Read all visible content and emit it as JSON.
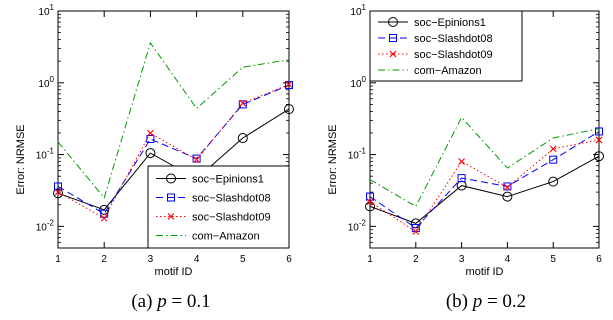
{
  "chart_data": [
    {
      "type": "line",
      "caption_prefix": "(a) ",
      "caption_var": "p",
      "caption_suffix": " = 0.1",
      "xlabel": "motif ID",
      "ylabel": "Error: NRMSE",
      "yscale": "log",
      "xlim": [
        1,
        6
      ],
      "ylim": [
        0.005,
        10
      ],
      "xticks": [
        "1",
        "2",
        "3",
        "4",
        "5",
        "6"
      ],
      "yticks": [
        {
          "value": 0.01,
          "base": "10",
          "exp": "-2"
        },
        {
          "value": 0.1,
          "base": "10",
          "exp": "-1"
        },
        {
          "value": 1,
          "base": "10",
          "exp": "0"
        },
        {
          "value": 10,
          "base": "10",
          "exp": "1"
        }
      ],
      "legend_position": "lower-right",
      "x": [
        1,
        2,
        3,
        4,
        5,
        6
      ],
      "series": [
        {
          "name": "soc−Epinions1",
          "color": "#000000",
          "dash": "",
          "marker": "circle",
          "values": [
            0.029,
            0.017,
            0.105,
            0.046,
            0.17,
            0.43
          ]
        },
        {
          "name": "soc−Slashdot08",
          "color": "#0000ff",
          "dash": "7,4",
          "marker": "square",
          "values": [
            0.036,
            0.015,
            0.165,
            0.088,
            0.5,
            0.93
          ]
        },
        {
          "name": "soc−Slashdot09",
          "color": "#ff0000",
          "dash": "1.5,2.5",
          "marker": "x",
          "values": [
            0.03,
            0.013,
            0.2,
            0.085,
            0.52,
            0.95
          ]
        },
        {
          "name": "com−Amazon",
          "color": "#009900",
          "dash": "7,3,1.5,3",
          "marker": "none",
          "values": [
            0.15,
            0.025,
            3.6,
            0.44,
            1.65,
            2.1
          ]
        }
      ]
    },
    {
      "type": "line",
      "caption_prefix": "(b) ",
      "caption_var": "p",
      "caption_suffix": " = 0.2",
      "xlabel": "motif ID",
      "ylabel": "Error: NRMSE",
      "yscale": "log",
      "xlim": [
        1,
        6
      ],
      "ylim": [
        0.005,
        10
      ],
      "xticks": [
        "1",
        "2",
        "3",
        "4",
        "5",
        "6"
      ],
      "yticks": [
        {
          "value": 0.01,
          "base": "10",
          "exp": "-2"
        },
        {
          "value": 0.1,
          "base": "10",
          "exp": "-1"
        },
        {
          "value": 1,
          "base": "10",
          "exp": "0"
        },
        {
          "value": 10,
          "base": "10",
          "exp": "1"
        }
      ],
      "legend_position": "top-left",
      "x": [
        1,
        2,
        3,
        4,
        5,
        6
      ],
      "series": [
        {
          "name": "soc−Epinions1",
          "color": "#000000",
          "dash": "",
          "marker": "circle",
          "values": [
            0.019,
            0.011,
            0.037,
            0.026,
            0.042,
            0.095
          ]
        },
        {
          "name": "soc−Slashdot08",
          "color": "#0000ff",
          "dash": "7,4",
          "marker": "square",
          "values": [
            0.026,
            0.0095,
            0.047,
            0.036,
            0.085,
            0.21
          ]
        },
        {
          "name": "soc−Slashdot09",
          "color": "#ff0000",
          "dash": "1.5,2.5",
          "marker": "x",
          "values": [
            0.022,
            0.0085,
            0.08,
            0.035,
            0.12,
            0.16
          ]
        },
        {
          "name": "com−Amazon",
          "color": "#009900",
          "dash": "7,3,1.5,3",
          "marker": "none",
          "values": [
            0.045,
            0.019,
            0.33,
            0.065,
            0.17,
            0.23
          ]
        }
      ]
    }
  ]
}
